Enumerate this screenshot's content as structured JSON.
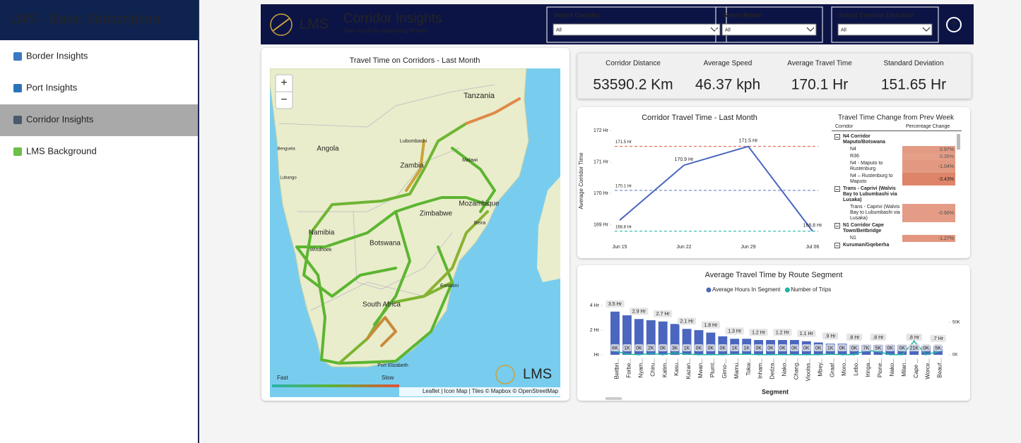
{
  "sidebar": {
    "title": "LMS - Basic Subscription",
    "items": [
      "Border Insights",
      "Port Insights",
      "Corridor Insights",
      "LMS Background"
    ],
    "active": 2
  },
  "header": {
    "logo_text": "LMS",
    "title": "Corridor Insights",
    "subtitle": "Save Costs by Optimizing Routes",
    "filters": [
      {
        "label": "Select Corridor",
        "value": "All"
      },
      {
        "label": "Select Route",
        "value": "All"
      },
      {
        "label": "Select Corridor Direction",
        "value": "All"
      }
    ],
    "help": "?"
  },
  "map": {
    "title": "Travel Time on Corridors - Last Month",
    "zoom_in": "+",
    "zoom_out": "−",
    "labels": [
      "Tanzania",
      "Angola",
      "Zambia",
      "Zimbabwe",
      "Mozambique",
      "Namibia",
      "Botswana",
      "South Africa",
      "Eswatini",
      "Lubumbashi",
      "Malawi",
      "Beira",
      "Windhoek",
      "Benguela",
      "Lubango",
      "Port Elizabeth"
    ],
    "legend": {
      "fast": "Fast",
      "slow": "Slow"
    },
    "attribution": "Leaflet | Icon Map | Tiles © Mapbox © OpenStreetMap",
    "logo_text": "LMS"
  },
  "kpis": [
    {
      "label": "Corridor Distance",
      "value": "53590.2 Km"
    },
    {
      "label": "Average Speed",
      "value": "46.37 kph"
    },
    {
      "label": "Average Travel Time",
      "value": "170.1 Hr"
    },
    {
      "label": "Standard Deviation",
      "value": "151.65 Hr"
    }
  ],
  "chart_data": [
    {
      "type": "line",
      "title": "Corridor Travel Time - Last Month",
      "y_label": "Average Corridor Time",
      "categories": [
        "Jun 15",
        "Jun 22",
        "Jun 29",
        "Jul 06"
      ],
      "values": [
        169.15,
        170.9,
        171.5,
        168.8
      ],
      "value_labels": [
        null,
        "170.9 Hr",
        "171.5 Hr",
        "168.8 Hr"
      ],
      "color": "#4a66bf",
      "ylim": [
        168.75,
        172.05
      ],
      "yticks": [
        {
          "value": 169,
          "label": "169 Hr"
        },
        {
          "value": 170,
          "label": "170 Hr"
        },
        {
          "value": 171,
          "label": "171 Hr"
        },
        {
          "value": 172,
          "label": "172 Hr"
        }
      ],
      "reference_lines": [
        {
          "value": 171.5,
          "label": "171.5 Hr",
          "color": "#e8735a"
        },
        {
          "value": 170.1,
          "label": "170.1 Hr",
          "color": "#7b8fd6"
        },
        {
          "value": 168.8,
          "label": "168.8 Hr",
          "color": "#3cc0b0"
        }
      ]
    },
    {
      "type": "bar",
      "title": "Average Travel Time by Route Segment",
      "x_label": "Segment",
      "categories": [
        "Beitbri...",
        "Forbe...",
        "Nyam...",
        "Chiru...",
        "Katim...",
        "Kasu...",
        "Kazan...",
        "Mwan...",
        "Plumt...",
        "Gimo-...",
        "Mamu...",
        "Tokw...",
        "Inham...",
        "Dedza...",
        "Nako...",
        "Chang...",
        "Vioolss...",
        "Mbey...",
        "Graaf...",
        "Moro...",
        "Lebo...",
        "Iringa...",
        "Pione...",
        "Nako...",
        "Milan...",
        "Cape ...",
        "Worce...",
        "Beauf..."
      ],
      "series": [
        {
          "name": "Average Hours In Segment",
          "color": "#4a66bf",
          "values": [
            3.5,
            3.2,
            2.9,
            2.8,
            2.7,
            2.5,
            2.1,
            2.0,
            1.8,
            1.5,
            1.3,
            1.3,
            1.2,
            1.2,
            1.2,
            1.2,
            1.1,
            1.0,
            0.9,
            0.9,
            0.8,
            0.8,
            0.8,
            0.8,
            0.8,
            0.8,
            0.7,
            0.7
          ],
          "value_labels": [
            "3.5 Hr",
            null,
            "2.9 Hr",
            null,
            "2.7 Hr",
            null,
            "2.1 Hr",
            null,
            "1.8 Hr",
            null,
            "1.3 Hr",
            null,
            "1.2 Hr",
            null,
            "1.2 Hr",
            null,
            "1.1 Hr",
            null,
            ".9 Hr",
            null,
            ".8 Hr",
            null,
            ".8 Hr",
            null,
            null,
            ".8 Hr",
            null,
            ".7 Hr"
          ]
        },
        {
          "name": "Number of Trips",
          "color": "#1fb3a3",
          "axis": "y2",
          "values": [
            6000,
            1000,
            300,
            2000,
            300,
            3000,
            1000,
            300,
            300,
            300,
            1000,
            1000,
            300,
            300,
            300,
            300,
            300,
            300,
            1000,
            300,
            300,
            7000,
            5000,
            300,
            300,
            21000,
            300,
            5000
          ],
          "value_labels": [
            "6K",
            "1K",
            "0K",
            "2K",
            "0K",
            "3K",
            "1K",
            "0K",
            "0K",
            "0K",
            "1K",
            "1K",
            "0K",
            "0K",
            "0K",
            "0K",
            "0K",
            "0K",
            "1K",
            "0K",
            "0K",
            "7K",
            "5K",
            "0K",
            "0K",
            "21K",
            "0K",
            "5K"
          ]
        }
      ],
      "ylim": [
        0,
        4.4
      ],
      "yticks": [
        {
          "value": 0,
          "label": "Hr"
        },
        {
          "value": 2,
          "label": "2 Hr"
        },
        {
          "value": 4,
          "label": "4 Hr"
        }
      ],
      "y2lim": [
        0,
        84000
      ],
      "y2ticks": [
        {
          "value": 0,
          "label": "0K"
        },
        {
          "value": 50000,
          "label": "50K"
        }
      ]
    }
  ],
  "table": {
    "title": "Travel Time Change from Prev Week",
    "columns": [
      "Corridor",
      "Percentage Change"
    ],
    "cell_color": "#de8468",
    "rows": [
      {
        "group": "N4 Corridor Maputo/Botswana",
        "children": [
          {
            "label": "N4",
            "value": 0.97,
            "value_label": "0.97%"
          },
          {
            "label": "R36",
            "value": 0.35,
            "value_label": "0.35%"
          },
          {
            "label": "N4 - Maputo to Rustenburg",
            "value": -1.04,
            "value_label": "-1.04%"
          },
          {
            "label": "N4 – Rustenburg to Maputo",
            "value": -3.43,
            "value_label": "-3.43%"
          }
        ]
      },
      {
        "group": "Trans - Caprivi (Walvis Bay to Lubumbashi via Lusaka)",
        "children": [
          {
            "label": "Trans - Caprivi (Walvis Bay to Lubumbashi via Lusaka)",
            "value": -0.66,
            "value_label": "-0.66%"
          }
        ]
      },
      {
        "group": "N1 Corridor Cape Town/Beitbridge",
        "children": [
          {
            "label": "N1",
            "value": -1.27,
            "value_label": "-1.27%"
          }
        ]
      },
      {
        "group": "Kuruman/Gqeberha",
        "children": []
      }
    ]
  }
}
